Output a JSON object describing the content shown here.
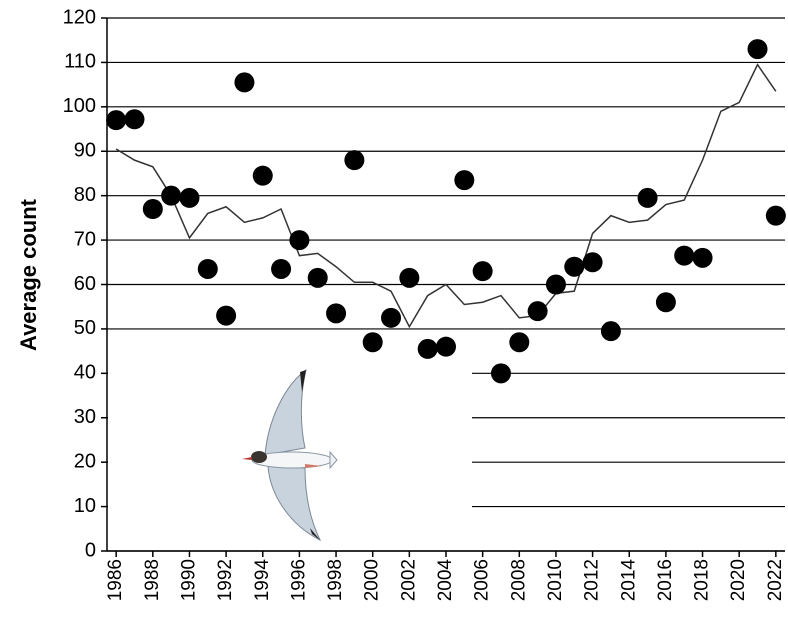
{
  "chart_data": {
    "type": "scatter",
    "y_label": "Average count",
    "x": [
      1986,
      1987,
      1988,
      1989,
      1990,
      1991,
      1992,
      1993,
      1994,
      1995,
      1996,
      1997,
      1998,
      1999,
      2000,
      2001,
      2002,
      2003,
      2004,
      2005,
      2006,
      2007,
      2008,
      2009,
      2010,
      2011,
      2012,
      2013,
      2014,
      2015,
      2016,
      2017,
      2018,
      2019,
      2020,
      2021,
      2022
    ],
    "series": [
      {
        "type": "scatter",
        "color": "#000000",
        "values": [
          97,
          97.2,
          77,
          80,
          79.5,
          63.5,
          53,
          105.5,
          84.5,
          63.5,
          70,
          61.5,
          53.5,
          88,
          47,
          52.5,
          61.5,
          45.5,
          46,
          83.5,
          63,
          40,
          47,
          54,
          60,
          64,
          65,
          49.5,
          null,
          79.5,
          56,
          66.5,
          66,
          null,
          null,
          113,
          75.5
        ]
      },
      {
        "type": "line",
        "color": "#333333",
        "values": [
          90.5,
          88,
          86.5,
          80,
          70.5,
          76,
          77.5,
          74,
          75,
          77,
          66.5,
          67,
          64,
          60.5,
          60.5,
          58.5,
          50.5,
          57.5,
          60,
          55.5,
          56,
          57.5,
          52.5,
          53,
          58,
          58.5,
          71.5,
          75.5,
          74,
          74.5,
          78,
          79,
          88,
          99,
          101,
          109.5,
          103.5
        ]
      }
    ],
    "xlim": [
      1985.5,
      2022.5
    ],
    "xticks": [
      1986,
      1988,
      1990,
      1992,
      1994,
      1996,
      1998,
      2000,
      2002,
      2004,
      2006,
      2008,
      2010,
      2012,
      2014,
      2016,
      2018,
      2020,
      2022
    ],
    "ylim": [
      0,
      120
    ],
    "yticks": [
      0,
      10,
      20,
      30,
      40,
      50,
      60,
      70,
      80,
      90,
      100,
      110,
      120
    ],
    "grid": true
  }
}
